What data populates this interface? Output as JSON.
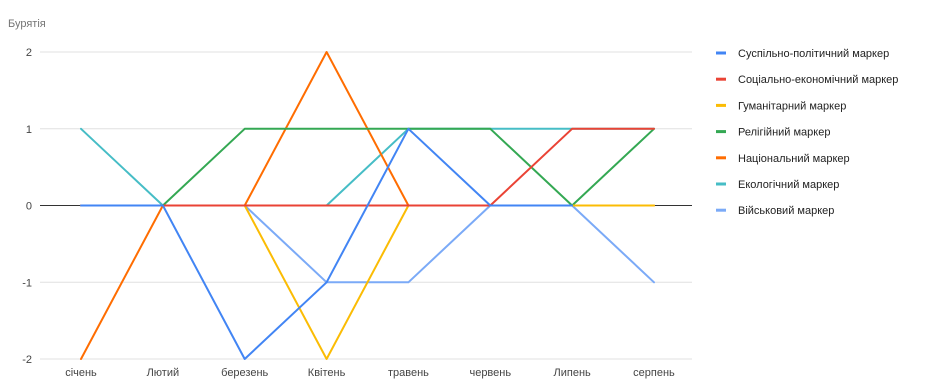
{
  "chart_data": {
    "type": "line",
    "title": "Бурятія",
    "categories": [
      "січень",
      "Лютий",
      "березень",
      "Квітень",
      "травень",
      "червень",
      "Липень",
      "серпень"
    ],
    "ylim": [
      -2,
      2
    ],
    "yticks": [
      2,
      1,
      0,
      -1,
      -2
    ],
    "grid": true,
    "legend_position": "right",
    "series": [
      {
        "name": "Суспільно-політичний маркер",
        "color": "#4285f4",
        "values": [
          0,
          0,
          -2,
          -1,
          1,
          0,
          0,
          null
        ]
      },
      {
        "name": "Соціально-економічний маркер",
        "color": "#ea4335",
        "values": [
          0,
          0,
          0,
          0,
          0,
          0,
          1,
          1
        ]
      },
      {
        "name": "Гуманітарний маркер",
        "color": "#fbbc04",
        "values": [
          0,
          0,
          0,
          -2,
          0,
          0,
          0,
          0
        ]
      },
      {
        "name": "Релігійний маркер",
        "color": "#34a853",
        "values": [
          0,
          0,
          1,
          1,
          1,
          1,
          0,
          1
        ]
      },
      {
        "name": "Національний маркер",
        "color": "#ff6d01",
        "values": [
          -2,
          0,
          0,
          2,
          0,
          0,
          0,
          0
        ]
      },
      {
        "name": "Екологічний маркер",
        "color": "#46bdc6",
        "values": [
          1,
          0,
          0,
          0,
          1,
          1,
          1,
          1
        ]
      },
      {
        "name": "Військовий маркер",
        "color": "#7baaf7",
        "values": [
          0,
          0,
          0,
          -1,
          -1,
          0,
          0,
          -1
        ]
      }
    ]
  }
}
